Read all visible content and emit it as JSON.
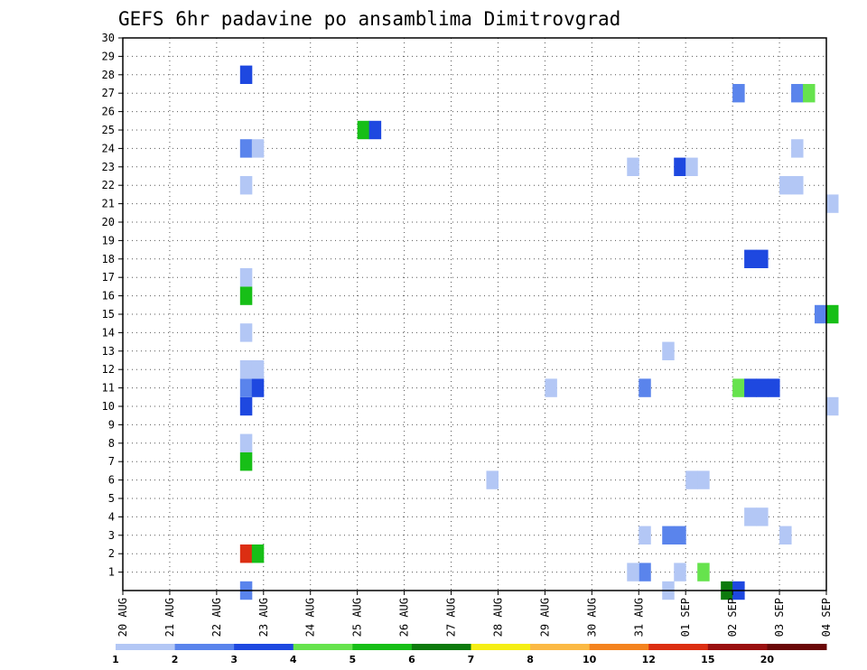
{
  "chart_data": {
    "type": "heatmap",
    "title": "GEFS 6hr padavine po ansamblima Dimitrovgrad",
    "x_tick_labels": [
      "20 AUG",
      "21 AUG",
      "22 AUG",
      "23 AUG",
      "24 AUG",
      "25 AUG",
      "26 AUG",
      "27 AUG",
      "28 AUG",
      "29 AUG",
      "30 AUG",
      "31 AUG",
      "01 SEP",
      "02 SEP",
      "03 SEP",
      "04 SEP"
    ],
    "y_tick_labels": [
      "1",
      "2",
      "3",
      "4",
      "5",
      "6",
      "7",
      "8",
      "9",
      "10",
      "11",
      "12",
      "13",
      "14",
      "15",
      "16",
      "17",
      "18",
      "19",
      "20",
      "21",
      "22",
      "23",
      "24",
      "25",
      "26",
      "27",
      "28",
      "29",
      "30"
    ],
    "y_range": [
      0,
      30
    ],
    "x_range_days": [
      0,
      15
    ],
    "grid": true,
    "colorbar": {
      "ticks": [
        "1",
        "2",
        "3",
        "4",
        "5",
        "6",
        "7",
        "8",
        "10",
        "12",
        "15",
        "20"
      ],
      "colors": [
        "#b3c7f5",
        "#5a84ec",
        "#1e48e0",
        "#66e34d",
        "#17bf17",
        "#0d7a0d",
        "#f5ee14",
        "#fbb944",
        "#f4831f",
        "#dc2e12",
        "#9a1010",
        "#6a0808"
      ]
    },
    "cells": [
      {
        "member": 0,
        "day": 2.5,
        "cls": 1
      },
      {
        "member": 1,
        "day": 11.75,
        "cls": 0
      },
      {
        "member": 1,
        "day": 11.0,
        "cls": 1
      },
      {
        "member": 1,
        "day": 10.75,
        "cls": 0
      },
      {
        "member": 1,
        "day": 12.25,
        "cls": 3
      },
      {
        "member": 0,
        "day": 12.75,
        "cls": 5
      },
      {
        "member": 0,
        "day": 13.0,
        "cls": 2
      },
      {
        "member": 0,
        "day": 11.5,
        "cls": 0
      },
      {
        "member": 2,
        "day": 2.5,
        "cls": 9
      },
      {
        "member": 2,
        "day": 2.75,
        "cls": 4
      },
      {
        "member": 3,
        "day": 11.5,
        "cls": 1
      },
      {
        "member": 3,
        "day": 11.75,
        "cls": 1
      },
      {
        "member": 3,
        "day": 11.0,
        "cls": 0
      },
      {
        "member": 3,
        "day": 14.0,
        "cls": 0
      },
      {
        "member": 4,
        "day": 13.25,
        "cls": 0
      },
      {
        "member": 4,
        "day": 13.5,
        "cls": 0
      },
      {
        "member": 6,
        "day": 7.75,
        "cls": 0
      },
      {
        "member": 6,
        "day": 12.0,
        "cls": 0
      },
      {
        "member": 6,
        "day": 12.25,
        "cls": 0
      },
      {
        "member": 7,
        "day": 2.5,
        "cls": 4
      },
      {
        "member": 8,
        "day": 2.5,
        "cls": 0
      },
      {
        "member": 10,
        "day": 2.5,
        "cls": 2
      },
      {
        "member": 10,
        "day": 15.0,
        "cls": 0
      },
      {
        "member": 11,
        "day": 2.5,
        "cls": 1
      },
      {
        "member": 11,
        "day": 2.75,
        "cls": 2
      },
      {
        "member": 11,
        "day": 9.0,
        "cls": 0
      },
      {
        "member": 11,
        "day": 11.0,
        "cls": 1
      },
      {
        "member": 11,
        "day": 13.0,
        "cls": 3
      },
      {
        "member": 11,
        "day": 13.25,
        "cls": 2
      },
      {
        "member": 11,
        "day": 13.5,
        "cls": 2
      },
      {
        "member": 11,
        "day": 13.75,
        "cls": 2
      },
      {
        "member": 12,
        "day": 2.5,
        "cls": 0
      },
      {
        "member": 12,
        "day": 2.75,
        "cls": 0
      },
      {
        "member": 13,
        "day": 11.5,
        "cls": 0
      },
      {
        "member": 14,
        "day": 2.5,
        "cls": 0
      },
      {
        "member": 15,
        "day": 14.75,
        "cls": 1
      },
      {
        "member": 15,
        "day": 15.0,
        "cls": 4
      },
      {
        "member": 16,
        "day": 2.5,
        "cls": 4
      },
      {
        "member": 17,
        "day": 2.5,
        "cls": 0
      },
      {
        "member": 18,
        "day": 13.25,
        "cls": 2
      },
      {
        "member": 18,
        "day": 13.5,
        "cls": 2
      },
      {
        "member": 21,
        "day": 15.0,
        "cls": 0
      },
      {
        "member": 22,
        "day": 2.5,
        "cls": 0
      },
      {
        "member": 22,
        "day": 14.0,
        "cls": 0
      },
      {
        "member": 22,
        "day": 14.25,
        "cls": 0
      },
      {
        "member": 23,
        "day": 10.75,
        "cls": 0
      },
      {
        "member": 23,
        "day": 11.75,
        "cls": 2
      },
      {
        "member": 23,
        "day": 12.0,
        "cls": 0
      },
      {
        "member": 24,
        "day": 2.5,
        "cls": 1
      },
      {
        "member": 24,
        "day": 2.75,
        "cls": 0
      },
      {
        "member": 24,
        "day": 14.25,
        "cls": 0
      },
      {
        "member": 25,
        "day": 5.0,
        "cls": 4
      },
      {
        "member": 25,
        "day": 5.25,
        "cls": 2
      },
      {
        "member": 27,
        "day": 13.0,
        "cls": 1
      },
      {
        "member": 27,
        "day": 14.25,
        "cls": 1
      },
      {
        "member": 27,
        "day": 14.5,
        "cls": 3
      },
      {
        "member": 28,
        "day": 2.5,
        "cls": 2
      }
    ]
  }
}
